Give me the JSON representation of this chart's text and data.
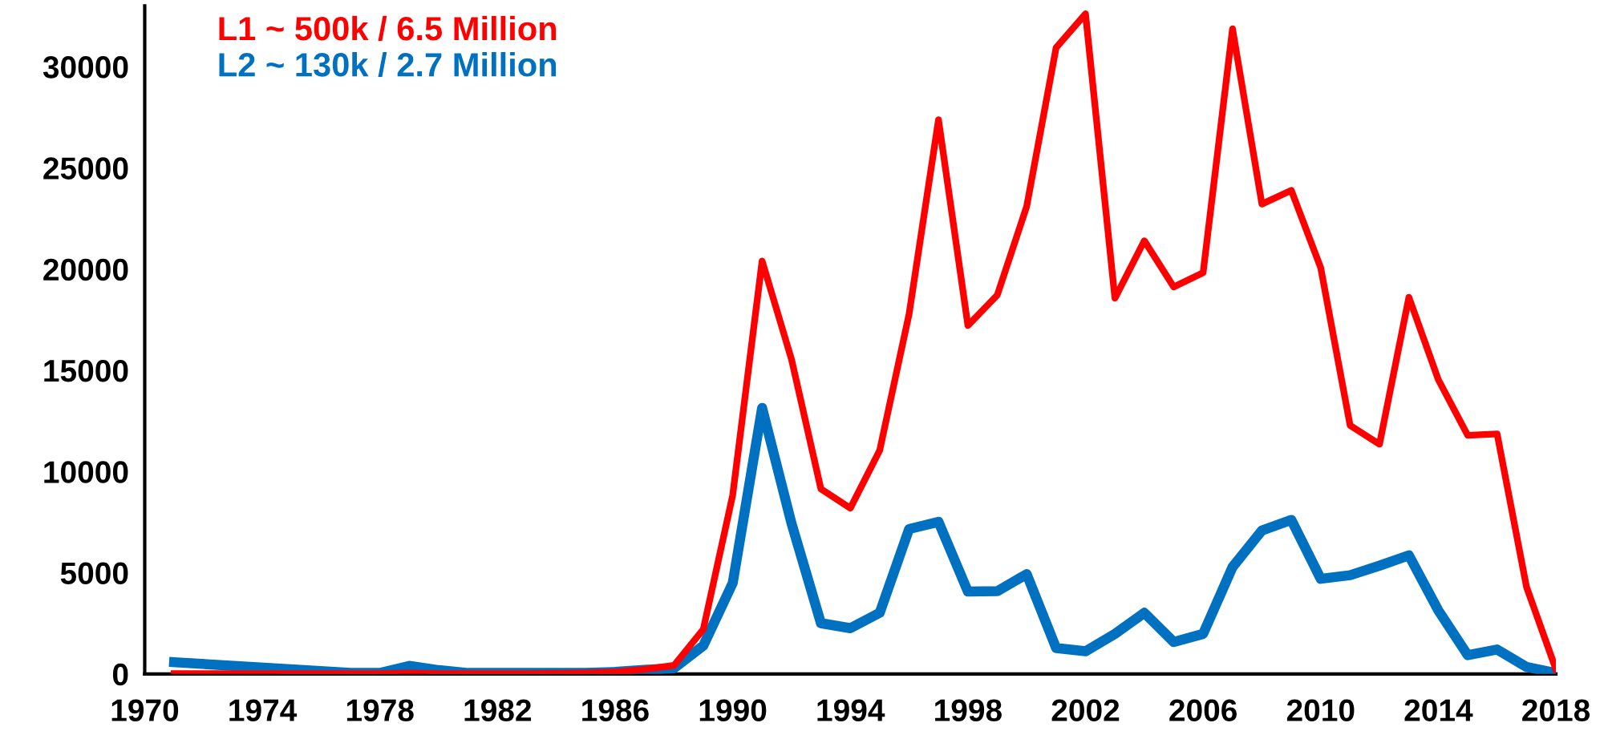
{
  "chart_data": {
    "type": "line",
    "x": [
      1971,
      1977,
      1978,
      1979,
      1980,
      1981,
      1982,
      1983,
      1984,
      1985,
      1986,
      1987,
      1988,
      1989,
      1990,
      1991,
      1992,
      1993,
      1994,
      1995,
      1996,
      1997,
      1998,
      1999,
      2000,
      2001,
      2002,
      2003,
      2004,
      2005,
      2006,
      2007,
      2008,
      2009,
      2010,
      2011,
      2012,
      2013,
      2014,
      2015,
      2016,
      2017,
      2018
    ],
    "series": [
      {
        "name": "L1 ~ 500k / 6.5 Million",
        "color": "#ff0000",
        "values": [
          20,
          20,
          20,
          50,
          20,
          20,
          20,
          20,
          30,
          50,
          100,
          230,
          420,
          2210,
          8840,
          20400,
          15540,
          9140,
          8190,
          11050,
          17790,
          27380,
          17210,
          18720,
          23100,
          30940,
          32610,
          18560,
          21400,
          19120,
          19820,
          31870,
          23210,
          23890,
          20070,
          12280,
          11350,
          18610,
          14540,
          11790,
          11860,
          4300,
          230
        ]
      },
      {
        "name": "L2 ~ 130k / 2.7 Million",
        "color": "#0070c0",
        "values": [
          580,
          50,
          50,
          400,
          190,
          50,
          50,
          50,
          50,
          50,
          100,
          200,
          280,
          1400,
          4490,
          13140,
          7440,
          2510,
          2260,
          3020,
          7160,
          7510,
          4070,
          4090,
          4930,
          1280,
          1120,
          1980,
          3020,
          1580,
          1980,
          5280,
          7090,
          7610,
          4700,
          4880,
          5350,
          5860,
          3140,
          930,
          1210,
          350,
          50
        ]
      }
    ],
    "xlim": [
      1970,
      2018
    ],
    "xticks": [
      1970,
      1974,
      1978,
      1982,
      1986,
      1990,
      1994,
      1998,
      2002,
      2006,
      2010,
      2014,
      2018
    ],
    "ylim": [
      0,
      33000
    ],
    "yticks": [
      0,
      5000,
      10000,
      15000,
      20000,
      25000,
      30000
    ],
    "grid": false,
    "legend": "top left",
    "marker": "none",
    "line_style": "solid"
  }
}
